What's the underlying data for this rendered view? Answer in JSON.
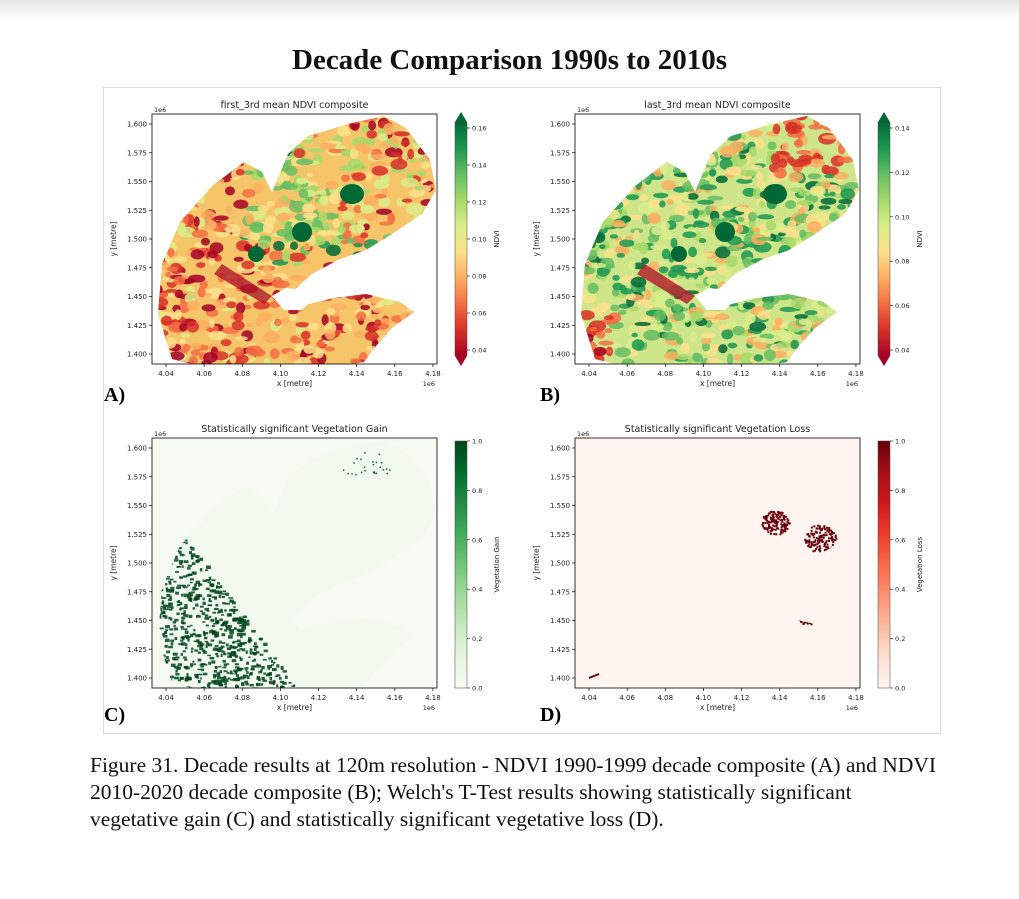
{
  "figure_title": "Decade Comparison 1990s to 2010s",
  "caption": "Figure 31. Decade results at 120m resolution - NDVI 1990-1999 decade composite (A) and NDVI 2010-2020 decade composite (B); Welch's T-Test results showing statistically significant vegetative gain (C) and statistically significant vegetative loss (D).",
  "panels": [
    {
      "letter": "A)",
      "title": "first_3rd mean NDVI composite",
      "x_label": "x [metre]",
      "y_label": "y [metre]",
      "x_exponent": "1e6",
      "y_exponent": "1e6",
      "x_ticks": [
        "4.04",
        "4.06",
        "4.08",
        "4.10",
        "4.12",
        "4.14",
        "4.16",
        "4.18"
      ],
      "y_ticks": [
        "1.600",
        "1.575",
        "1.550",
        "1.525",
        "1.500",
        "1.475",
        "1.450",
        "1.425",
        "1.400"
      ],
      "colorbar_label": "NDVI",
      "colorbar_ticks": [
        "0.16",
        "0.14",
        "0.12",
        "0.10",
        "0.08",
        "0.06",
        "0.04"
      ],
      "colormap": "RdYlGn"
    },
    {
      "letter": "B)",
      "title": "last_3rd mean NDVI composite",
      "x_label": "x [metre]",
      "y_label": "y [metre]",
      "x_exponent": "1e6",
      "y_exponent": "1e6",
      "x_ticks": [
        "4.04",
        "4.06",
        "4.08",
        "4.10",
        "4.12",
        "4.14",
        "4.16",
        "4.18"
      ],
      "y_ticks": [
        "1.600",
        "1.575",
        "1.550",
        "1.525",
        "1.500",
        "1.475",
        "1.450",
        "1.425",
        "1.400"
      ],
      "colorbar_label": "NDVI",
      "colorbar_ticks": [
        "0.14",
        "0.12",
        "0.10",
        "0.08",
        "0.06",
        "0.04"
      ],
      "colormap": "RdYlGn"
    },
    {
      "letter": "C)",
      "title": "Statistically significant Vegetation Gain",
      "x_label": "x [metre]",
      "y_label": "y [metre]",
      "x_exponent": "1e6",
      "y_exponent": "1e6",
      "x_ticks": [
        "4.04",
        "4.06",
        "4.08",
        "4.10",
        "4.12",
        "4.14",
        "4.16",
        "4.18"
      ],
      "y_ticks": [
        "1.600",
        "1.575",
        "1.550",
        "1.525",
        "1.500",
        "1.475",
        "1.450",
        "1.425",
        "1.400"
      ],
      "colorbar_label": "Vegetation Gain",
      "colorbar_ticks": [
        "1.0",
        "0.8",
        "0.6",
        "0.4",
        "0.2",
        "0.0"
      ],
      "colormap": "Greens"
    },
    {
      "letter": "D)",
      "title": "Statistically significant Vegetation Loss",
      "x_label": "x [metre]",
      "y_label": "y [metre]",
      "x_exponent": "1e6",
      "y_exponent": "1e6",
      "x_ticks": [
        "4.04",
        "4.06",
        "4.08",
        "4.10",
        "4.12",
        "4.14",
        "4.16",
        "4.18"
      ],
      "y_ticks": [
        "1.600",
        "1.575",
        "1.550",
        "1.525",
        "1.500",
        "1.475",
        "1.450",
        "1.425",
        "1.400"
      ],
      "colorbar_label": "Vegetation Loss",
      "colorbar_ticks": [
        "1.0",
        "0.8",
        "0.6",
        "0.4",
        "0.2",
        "0.0"
      ],
      "colormap": "Reds"
    }
  ]
}
